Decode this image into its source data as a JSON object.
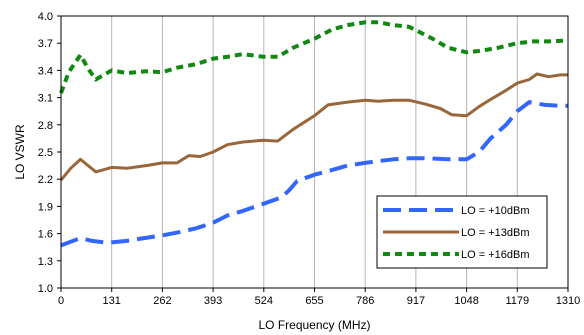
{
  "chart_data": {
    "type": "line",
    "xlabel": "LO Frequency (MHz)",
    "ylabel": "LO VSWR",
    "xlim": [
      0,
      1310
    ],
    "ylim": [
      1.0,
      4.0
    ],
    "xticks": [
      "0",
      "131",
      "262",
      "393",
      "524",
      "655",
      "786",
      "917",
      "1048",
      "1179",
      "1310"
    ],
    "yticks": [
      "1.0",
      "1.3",
      "1.6",
      "1.9",
      "2.2",
      "2.5",
      "2.8",
      "3.1",
      "3.4",
      "3.7",
      "4.0"
    ],
    "grid": "vertical",
    "legend_position": "bottom-right",
    "series": [
      {
        "name": "LO = +10dBm",
        "color": "#3366ff",
        "dash": "long-dash",
        "x": [
          0,
          50,
          80,
          120,
          170,
          200,
          262,
          310,
          350,
          393,
          430,
          470,
          524,
          570,
          590,
          610,
          655,
          700,
          740,
          786,
          820,
          860,
          900,
          950,
          1000,
          1048,
          1080,
          1110,
          1150,
          1179,
          1210,
          1250,
          1290,
          1310
        ],
        "y": [
          1.47,
          1.55,
          1.52,
          1.5,
          1.52,
          1.54,
          1.58,
          1.62,
          1.66,
          1.72,
          1.8,
          1.85,
          1.93,
          2.0,
          2.08,
          2.18,
          2.25,
          2.3,
          2.35,
          2.38,
          2.4,
          2.42,
          2.43,
          2.43,
          2.42,
          2.42,
          2.5,
          2.65,
          2.8,
          2.95,
          3.05,
          3.02,
          3.01,
          3.01
        ]
      },
      {
        "name": "LO = +13dBm",
        "color": "#99663a",
        "dash": "solid",
        "x": [
          0,
          25,
          50,
          90,
          131,
          170,
          220,
          262,
          300,
          330,
          360,
          393,
          430,
          470,
          524,
          560,
          600,
          655,
          690,
          740,
          786,
          820,
          860,
          900,
          940,
          980,
          1010,
          1048,
          1080,
          1110,
          1150,
          1179,
          1210,
          1230,
          1260,
          1290,
          1310
        ],
        "y": [
          2.19,
          2.32,
          2.42,
          2.28,
          2.33,
          2.32,
          2.35,
          2.38,
          2.38,
          2.46,
          2.45,
          2.5,
          2.58,
          2.61,
          2.63,
          2.62,
          2.75,
          2.9,
          3.02,
          3.05,
          3.07,
          3.06,
          3.07,
          3.07,
          3.03,
          2.98,
          2.91,
          2.9,
          3.0,
          3.08,
          3.18,
          3.26,
          3.3,
          3.36,
          3.33,
          3.35,
          3.35
        ]
      },
      {
        "name": "LO = +16dBm",
        "color": "#118811",
        "dash": "short-dash",
        "x": [
          0,
          20,
          50,
          70,
          90,
          131,
          170,
          220,
          262,
          300,
          350,
          393,
          430,
          470,
          524,
          560,
          600,
          655,
          700,
          740,
          786,
          820,
          860,
          900,
          960,
          1000,
          1048,
          1090,
          1130,
          1179,
          1220,
          1260,
          1310
        ],
        "y": [
          3.15,
          3.38,
          3.57,
          3.42,
          3.3,
          3.4,
          3.37,
          3.39,
          3.38,
          3.43,
          3.47,
          3.53,
          3.55,
          3.58,
          3.55,
          3.55,
          3.65,
          3.75,
          3.85,
          3.9,
          3.93,
          3.93,
          3.9,
          3.88,
          3.75,
          3.65,
          3.6,
          3.62,
          3.65,
          3.7,
          3.72,
          3.72,
          3.73
        ]
      }
    ]
  }
}
